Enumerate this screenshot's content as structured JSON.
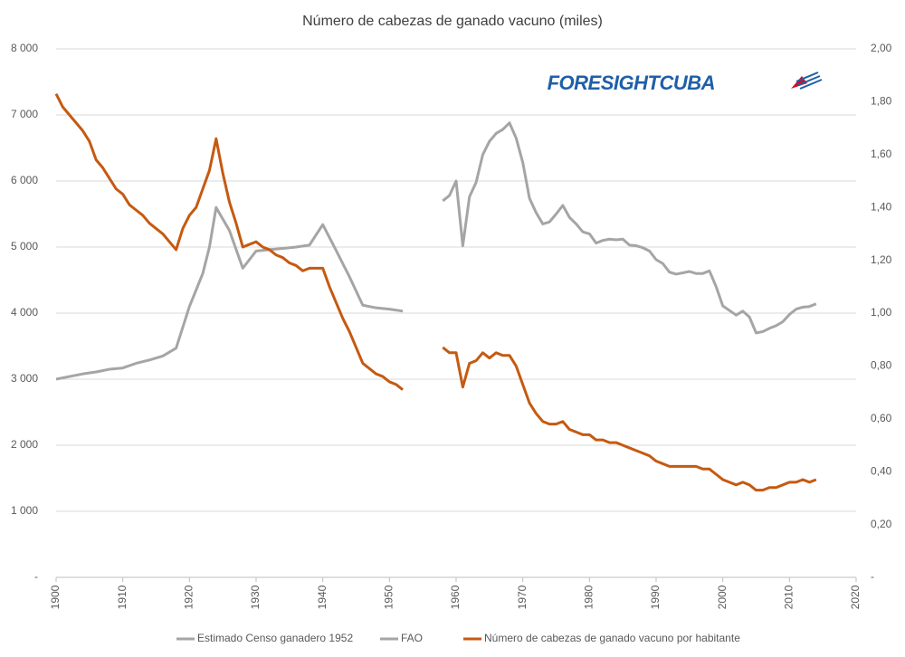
{
  "chart_data": {
    "type": "line",
    "title": "Número de cabezas de ganado vacuno  (miles)",
    "annotation": "FORESIGHTCUBA",
    "grid": true,
    "xlim": [
      1900,
      2020
    ],
    "xticks": [
      1900,
      1910,
      1920,
      1930,
      1940,
      1950,
      1960,
      1970,
      1980,
      1990,
      2000,
      2010,
      2020
    ],
    "ylim": [
      0,
      8000
    ],
    "yticks": [
      {
        "value": 0,
        "label": "-"
      },
      {
        "value": 1000,
        "label": "1 000"
      },
      {
        "value": 2000,
        "label": "2 000"
      },
      {
        "value": 3000,
        "label": "3 000"
      },
      {
        "value": 4000,
        "label": "4 000"
      },
      {
        "value": 5000,
        "label": "5 000"
      },
      {
        "value": 6000,
        "label": "6 000"
      },
      {
        "value": 7000,
        "label": "7 000"
      },
      {
        "value": 8000,
        "label": "8 000"
      }
    ],
    "y2lim": [
      0,
      2
    ],
    "y2ticks": [
      {
        "value": 0,
        "label": "-"
      },
      {
        "value": 0.2,
        "label": "0,20"
      },
      {
        "value": 0.4,
        "label": "0,40"
      },
      {
        "value": 0.6,
        "label": "0,60"
      },
      {
        "value": 0.8,
        "label": "0,80"
      },
      {
        "value": 1.0,
        "label": "1,00"
      },
      {
        "value": 1.2,
        "label": "1,20"
      },
      {
        "value": 1.4,
        "label": "1,40"
      },
      {
        "value": 1.6,
        "label": "1,60"
      },
      {
        "value": 1.8,
        "label": "1,80"
      },
      {
        "value": 2.0,
        "label": "2,00"
      }
    ],
    "series": [
      {
        "name": "Estimado Censo ganadero 1952",
        "color": "#a5a5a5",
        "x": [
          1900,
          1902,
          1904,
          1906,
          1908,
          1910,
          1912,
          1914,
          1916,
          1918,
          1920,
          1922,
          1923,
          1924,
          1926,
          1928,
          1930,
          1932,
          1934,
          1936,
          1938,
          1940,
          1942,
          1944,
          1946,
          1948,
          1950,
          1952
        ],
        "values": [
          3000,
          3040,
          3080,
          3110,
          3150,
          3170,
          3240,
          3290,
          3350,
          3470,
          4100,
          4600,
          5000,
          5600,
          5250,
          4680,
          4940,
          4960,
          4980,
          5000,
          5030,
          5340,
          4950,
          4550,
          4120,
          4080,
          4060,
          4030
        ]
      },
      {
        "name": "FAO",
        "color": "#a5a5a5",
        "x": [
          1958,
          1959,
          1960,
          1961,
          1962,
          1963,
          1964,
          1965,
          1966,
          1967,
          1968,
          1969,
          1970,
          1971,
          1972,
          1973,
          1974,
          1975,
          1976,
          1977,
          1978,
          1979,
          1980,
          1981,
          1982,
          1983,
          1984,
          1985,
          1986,
          1987,
          1988,
          1989,
          1990,
          1991,
          1992,
          1993,
          1994,
          1995,
          1996,
          1997,
          1998,
          1999,
          2000,
          2001,
          2002,
          2003,
          2004,
          2005,
          2006,
          2007,
          2008,
          2009,
          2010,
          2011,
          2012,
          2013,
          2014
        ],
        "values": [
          5700,
          5780,
          6000,
          5020,
          5760,
          5980,
          6400,
          6600,
          6720,
          6780,
          6880,
          6650,
          6280,
          5740,
          5520,
          5350,
          5380,
          5500,
          5630,
          5450,
          5350,
          5230,
          5200,
          5060,
          5100,
          5120,
          5110,
          5120,
          5030,
          5020,
          4990,
          4940,
          4810,
          4750,
          4620,
          4590,
          4610,
          4630,
          4600,
          4600,
          4640,
          4400,
          4110,
          4040,
          3970,
          4030,
          3940,
          3700,
          3720,
          3770,
          3810,
          3870,
          3980,
          4060,
          4090,
          4100,
          4140
        ]
      },
      {
        "name": "Número de cabezas de ganado vacuno por habitante",
        "color": "#c55a11",
        "axis": "y2",
        "x": [
          1900,
          1901,
          1902,
          1903,
          1904,
          1905,
          1906,
          1907,
          1908,
          1909,
          1910,
          1911,
          1912,
          1913,
          1914,
          1915,
          1916,
          1917,
          1918,
          1919,
          1920,
          1921,
          1922,
          1923,
          1924,
          1925,
          1926,
          1927,
          1928,
          1929,
          1930,
          1931,
          1932,
          1933,
          1934,
          1935,
          1936,
          1937,
          1938,
          1939,
          1940,
          1941,
          1942,
          1943,
          1944,
          1945,
          1946,
          1947,
          1948,
          1949,
          1950,
          1951,
          1952,
          1953,
          1954,
          1955,
          1956,
          1957,
          1958,
          1959,
          1960,
          1961,
          1962,
          1963,
          1964,
          1965,
          1966,
          1967,
          1968,
          1969,
          1970,
          1971,
          1972,
          1973,
          1974,
          1975,
          1976,
          1977,
          1978,
          1979,
          1980,
          1981,
          1982,
          1983,
          1984,
          1985,
          1986,
          1987,
          1988,
          1989,
          1990,
          1991,
          1992,
          1993,
          1994,
          1995,
          1996,
          1997,
          1998,
          1999,
          2000,
          2001,
          2002,
          2003,
          2004,
          2005,
          2006,
          2007,
          2008,
          2009,
          2010,
          2011,
          2012,
          2013,
          2014
        ],
        "values": [
          1.83,
          1.78,
          1.75,
          1.72,
          1.69,
          1.65,
          1.58,
          1.55,
          1.51,
          1.47,
          1.45,
          1.41,
          1.39,
          1.37,
          1.34,
          1.32,
          1.3,
          1.27,
          1.24,
          1.32,
          1.37,
          1.4,
          1.47,
          1.54,
          1.66,
          1.53,
          1.42,
          1.34,
          1.25,
          1.26,
          1.27,
          1.25,
          1.24,
          1.22,
          1.21,
          1.19,
          1.18,
          1.16,
          1.17,
          1.17,
          1.17,
          1.1,
          1.04,
          0.98,
          0.93,
          0.87,
          0.81,
          0.79,
          0.77,
          0.76,
          0.74,
          0.73,
          0.71,
          null,
          null,
          null,
          null,
          null,
          0.87,
          0.85,
          0.85,
          0.72,
          0.81,
          0.82,
          0.85,
          0.83,
          0.85,
          0.84,
          0.84,
          0.8,
          0.73,
          0.66,
          0.62,
          0.59,
          0.58,
          0.58,
          0.59,
          0.56,
          0.55,
          0.54,
          0.54,
          0.52,
          0.52,
          0.51,
          0.51,
          0.5,
          0.49,
          0.48,
          0.47,
          0.46,
          0.44,
          0.43,
          0.42,
          0.42,
          0.42,
          0.42,
          0.42,
          0.41,
          0.41,
          0.39,
          0.37,
          0.36,
          0.35,
          0.36,
          0.35,
          0.33,
          0.33,
          0.34,
          0.34,
          0.35,
          0.36,
          0.36,
          0.37,
          0.36,
          0.37
        ]
      }
    ]
  }
}
